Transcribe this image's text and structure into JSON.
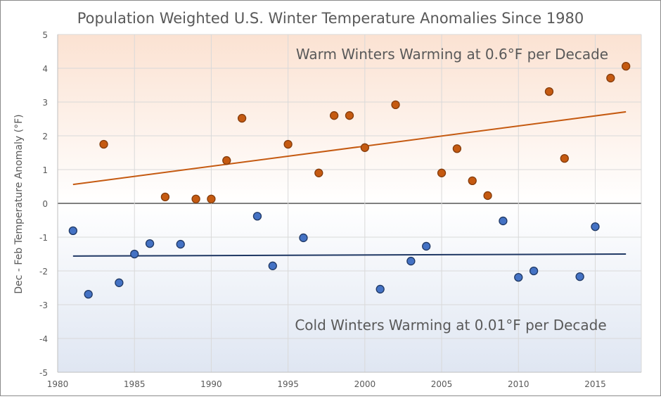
{
  "chart_data": {
    "type": "scatter",
    "title": "Population Weighted U.S. Winter Temperature Anomalies Since 1980",
    "xlabel": "",
    "ylabel": "Dec - Feb  Temperature Anomaly (°F)",
    "xlim": [
      1980,
      2018
    ],
    "ylim": [
      -5,
      5
    ],
    "xticks": [
      1980,
      1985,
      1990,
      1995,
      2000,
      2005,
      2010,
      2015
    ],
    "yticks": [
      -5,
      -4,
      -3,
      -2,
      -1,
      0,
      1,
      2,
      3,
      4,
      5
    ],
    "grid": true,
    "colors": {
      "warm": "#c55a11",
      "warm_edge": "#843c0c",
      "cold": "#4472c4",
      "cold_edge": "#1f3864",
      "warm_trend": "#c55a11",
      "cold_trend": "#1f3864",
      "warm_bg": "#fbe2d2",
      "cold_bg": "#dfe6f2"
    },
    "annotations": {
      "warm": "Warm Winters Warming at 0.6°F per Decade",
      "cold": "Cold Winters Warming at 0.01°F per Decade"
    },
    "points": [
      [
        1981,
        -0.81
      ],
      [
        1982,
        -2.69
      ],
      [
        1983,
        1.75
      ],
      [
        1984,
        -2.35
      ],
      [
        1985,
        -1.5
      ],
      [
        1986,
        -1.19
      ],
      [
        1987,
        0.19
      ],
      [
        1988,
        -1.21
      ],
      [
        1989,
        0.13
      ],
      [
        1990,
        0.13
      ],
      [
        1991,
        1.27
      ],
      [
        1992,
        2.52
      ],
      [
        1993,
        -0.38
      ],
      [
        1994,
        -1.85
      ],
      [
        1995,
        1.75
      ],
      [
        1996,
        -1.02
      ],
      [
        1997,
        0.9
      ],
      [
        1998,
        2.6
      ],
      [
        1999,
        2.6
      ],
      [
        2000,
        1.65
      ],
      [
        2001,
        -2.54
      ],
      [
        2002,
        2.92
      ],
      [
        2003,
        -1.71
      ],
      [
        2004,
        -1.27
      ],
      [
        2005,
        0.9
      ],
      [
        2006,
        1.62
      ],
      [
        2007,
        0.67
      ],
      [
        2008,
        0.23
      ],
      [
        2009,
        -0.52
      ],
      [
        2010,
        -2.19
      ],
      [
        2011,
        -2.0
      ],
      [
        2012,
        3.31
      ],
      [
        2013,
        1.33
      ],
      [
        2014,
        -2.17
      ],
      [
        2015,
        -0.69
      ],
      [
        2016,
        3.71
      ],
      [
        2017,
        4.06
      ]
    ],
    "trendlines": [
      {
        "group": "warm",
        "x": [
          1981,
          2017
        ],
        "y": [
          0.56,
          2.71
        ]
      },
      {
        "group": "cold",
        "x": [
          1981,
          2017
        ],
        "y": [
          -1.56,
          -1.5
        ]
      }
    ]
  }
}
